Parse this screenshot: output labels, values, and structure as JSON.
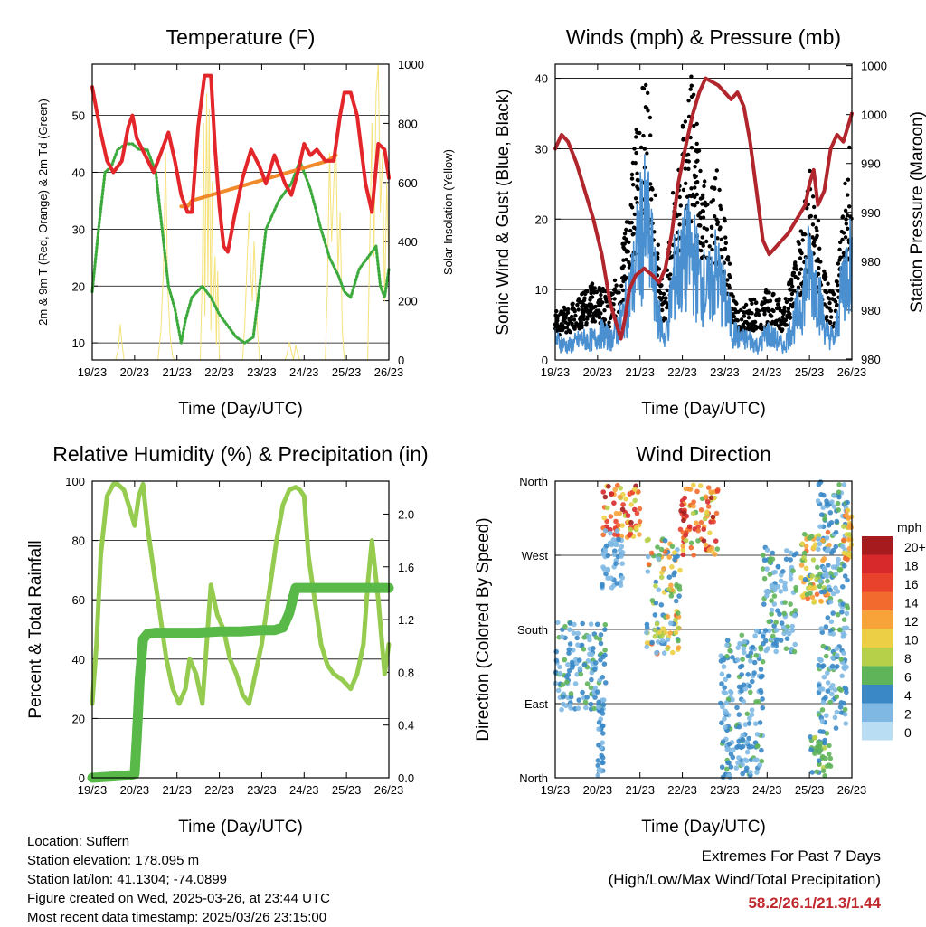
{
  "x_tick_labels": [
    "19/23",
    "20/23",
    "21/23",
    "22/23",
    "23/23",
    "24/23",
    "25/23",
    "26/23"
  ],
  "info": {
    "location": "Location: Suffern",
    "elevation": "Station elevation: 178.095 m",
    "latlon": "Station lat/lon: 41.1304; -74.0899",
    "created": "Figure created on Wed, 2025-03-26, at 23:44 UTC",
    "recent": "Most recent data timestamp: 2025/03/26 23:15:00"
  },
  "extremes": {
    "title": "Extremes For Past 7 Days",
    "subtitle": "(High/Low/Max Wind/Total Precipitation)",
    "values": "58.2/26.1/21.3/1.44",
    "value_color": "#c0282d"
  },
  "chart_data": [
    {
      "type": "line",
      "title": "Temperature (F)",
      "xlabel": "Time (Day/UTC)",
      "ylabel": "2m & 9m T (Red, Orange) & 2m Td (Green)",
      "y2label": "Solar Insolation (Yellow)",
      "x_unit": "days since 19/23",
      "xlim": [
        0,
        7
      ],
      "ylim": [
        7,
        59
      ],
      "y2lim": [
        0,
        1000
      ],
      "yticks": [
        10,
        20,
        30,
        40,
        50
      ],
      "y2ticks": [
        0,
        200,
        400,
        600,
        800,
        1000
      ],
      "grid": true,
      "series": [
        {
          "name": "2m T",
          "color": "#e3262a",
          "x": [
            0,
            0.2,
            0.35,
            0.5,
            0.7,
            0.85,
            0.95,
            1.05,
            1.25,
            1.45,
            1.65,
            1.8,
            1.95,
            2.1,
            2.25,
            2.35,
            2.5,
            2.65,
            2.8,
            2.9,
            3.0,
            3.1,
            3.2,
            3.35,
            3.55,
            3.75,
            3.95,
            4.1,
            4.3,
            4.55,
            4.7,
            4.85,
            5.0,
            5.15,
            5.3,
            5.5,
            5.7,
            5.85,
            5.95,
            6.1,
            6.25,
            6.45,
            6.6,
            6.75,
            6.9,
            7.0
          ],
          "y": [
            55,
            47,
            42,
            40,
            42,
            48,
            50,
            46,
            43,
            40,
            44,
            47,
            42,
            36,
            33,
            33,
            48,
            57,
            57,
            44,
            34,
            27,
            26,
            32,
            39,
            44,
            41,
            38,
            43,
            38,
            36,
            40,
            45,
            43,
            44,
            42,
            42,
            50,
            54,
            54,
            50,
            38,
            33,
            45,
            44,
            39
          ]
        },
        {
          "name": "9m T",
          "color": "#f08a2a",
          "x": [
            2.1,
            2.25,
            2.35,
            5.55,
            5.75
          ],
          "y": [
            34,
            34,
            35,
            42,
            43
          ]
        },
        {
          "name": "2m Td",
          "color": "#3daa3d",
          "x": [
            0,
            0.15,
            0.3,
            0.45,
            0.6,
            0.8,
            0.95,
            1.1,
            1.3,
            1.5,
            1.65,
            1.8,
            1.95,
            2.1,
            2.2,
            2.35,
            2.6,
            2.8,
            3.0,
            3.2,
            3.4,
            3.6,
            3.8,
            3.95,
            4.1,
            4.4,
            4.7,
            4.9,
            5.0,
            5.15,
            5.4,
            5.6,
            5.8,
            5.95,
            6.1,
            6.3,
            6.5,
            6.7,
            6.8,
            6.9,
            7.0
          ],
          "y": [
            19,
            30,
            40,
            41,
            44,
            45,
            45,
            44,
            44,
            40,
            30,
            20,
            16,
            10,
            14,
            18,
            20,
            18,
            15,
            13,
            11,
            10,
            11,
            20,
            30,
            35,
            38,
            42,
            40,
            37,
            30,
            25,
            22,
            19,
            18,
            23,
            25,
            27,
            20,
            18,
            23
          ]
        }
      ],
      "series_y2": [
        {
          "name": "Solar Insolation",
          "color": "#f5e27a",
          "x": [
            0.55,
            0.62,
            0.66,
            0.7,
            0.75,
            0.8,
            0.84,
            0.9,
            0.95,
            1.55,
            1.62,
            1.68,
            1.73,
            1.78,
            1.84,
            1.9,
            1.95,
            2.55,
            2.6,
            2.63,
            2.66,
            2.7,
            2.73,
            2.76,
            2.8,
            2.83,
            2.86,
            2.9,
            2.93,
            2.96,
            3.0,
            3.55,
            3.6,
            3.66,
            3.7,
            3.74,
            3.78,
            3.82,
            3.86,
            3.9,
            3.95,
            4.55,
            4.6,
            4.65,
            4.7,
            4.75,
            4.8,
            4.85,
            4.9,
            5.5,
            5.55,
            5.6,
            5.65,
            5.7,
            5.75,
            5.8,
            5.85,
            5.9,
            5.95,
            6.5,
            6.55,
            6.6,
            6.65,
            6.7,
            6.75,
            6.8,
            6.85,
            6.9,
            6.95,
            7.0
          ],
          "y": [
            0,
            40,
            120,
            60,
            0,
            0,
            0,
            0,
            0,
            0,
            100,
            300,
            700,
            250,
            80,
            10,
            0,
            0,
            300,
            800,
            150,
            900,
            250,
            850,
            100,
            600,
            200,
            350,
            50,
            300,
            0,
            0,
            120,
            350,
            500,
            300,
            200,
            400,
            250,
            100,
            0,
            0,
            20,
            60,
            30,
            0,
            50,
            20,
            0,
            0,
            250,
            700,
            400,
            600,
            750,
            300,
            500,
            100,
            0,
            0,
            400,
            800,
            350,
            900,
            1000,
            500,
            700,
            200,
            600,
            300
          ]
        }
      ]
    },
    {
      "type": "line",
      "title": "Winds (mph) & Pressure (mb)",
      "xlabel": "Time (Day/UTC)",
      "ylabel": "Sonic Wind & Gust (Blue, Black)",
      "y2label": "Station Pressure (Maroon)",
      "x_unit": "days since 19/23",
      "xlim": [
        0,
        7
      ],
      "ylim": [
        0,
        42
      ],
      "yticks": [
        0,
        10,
        20,
        30,
        40
      ],
      "y2_tick_labels": [
        "1000",
        "1000",
        "990",
        "990",
        "980",
        "980",
        "980"
      ],
      "grid": true,
      "series": [
        {
          "name": "Wind",
          "color": "#4a90d0",
          "x": [
            0,
            0.3,
            0.6,
            0.9,
            1.1,
            1.3,
            1.5,
            1.7,
            1.85,
            2.0,
            2.15,
            2.3,
            2.45,
            2.6,
            2.8,
            3.0,
            3.2,
            3.4,
            3.6,
            3.8,
            4.0,
            4.2,
            4.4,
            4.6,
            4.8,
            5.0,
            5.2,
            5.4,
            5.6,
            5.8,
            6.0,
            6.2,
            6.4,
            6.6,
            6.8,
            7.0
          ],
          "y": [
            3,
            2,
            3,
            3,
            4,
            3,
            5,
            8,
            12,
            18,
            20,
            14,
            6,
            3,
            12,
            14,
            16,
            12,
            10,
            13,
            9,
            4,
            3,
            3,
            2,
            4,
            3,
            2,
            5,
            8,
            14,
            10,
            4,
            3,
            12,
            15
          ]
        },
        {
          "name": "Gust",
          "color": "#000000",
          "x": [
            0,
            0.3,
            0.6,
            0.9,
            1.1,
            1.3,
            1.5,
            1.7,
            1.85,
            2.0,
            2.15,
            2.3,
            2.45,
            2.6,
            2.8,
            3.0,
            3.2,
            3.4,
            3.6,
            3.8,
            4.0,
            4.2,
            4.4,
            4.6,
            4.8,
            5.0,
            5.2,
            5.4,
            5.6,
            5.8,
            6.0,
            6.2,
            6.4,
            6.6,
            6.8,
            7.0
          ],
          "y": [
            6,
            7,
            8,
            10,
            9,
            8,
            12,
            18,
            26,
            32,
            36,
            28,
            12,
            8,
            24,
            30,
            36,
            27,
            20,
            24,
            18,
            8,
            6,
            8,
            7,
            9,
            8,
            7,
            12,
            16,
            24,
            18,
            10,
            8,
            20,
            30
          ]
        },
        {
          "name": "Station Pressure",
          "color": "#b0262c",
          "x": [
            0,
            0.15,
            0.3,
            0.5,
            0.7,
            0.9,
            1.1,
            1.3,
            1.45,
            1.55,
            1.65,
            1.75,
            1.9,
            2.1,
            2.3,
            2.45,
            2.6,
            2.75,
            2.9,
            3.1,
            3.25,
            3.4,
            3.55,
            3.7,
            3.85,
            4.0,
            4.15,
            4.3,
            4.45,
            4.6,
            4.75,
            4.9,
            5.05,
            5.2,
            5.35,
            5.5,
            5.6,
            5.7,
            5.8,
            5.9,
            6.0,
            6.1,
            6.2,
            6.35,
            6.5,
            6.65,
            6.8,
            6.9,
            7.0
          ],
          "y": [
            30,
            32,
            31,
            28,
            24,
            20,
            15,
            8,
            5,
            3,
            6,
            10,
            12,
            13,
            12,
            11,
            13,
            18,
            25,
            31,
            35,
            38,
            40,
            39.5,
            39,
            38,
            37,
            38,
            36,
            31,
            24,
            17,
            15,
            16,
            17,
            18,
            19,
            20,
            21,
            22,
            25,
            27,
            22,
            24,
            30,
            32,
            31,
            33,
            35
          ]
        }
      ]
    },
    {
      "type": "line",
      "title": "Relative Humidity (%) & Precipitation (in)",
      "xlabel": "Time (Day/UTC)",
      "ylabel": "Percent & Total Rainfall",
      "x_unit": "days since 19/23",
      "xlim": [
        0,
        7
      ],
      "ylim": [
        0,
        100
      ],
      "y2lim": [
        0,
        2.25
      ],
      "yticks": [
        0,
        20,
        40,
        60,
        80,
        100
      ],
      "y2ticks": [
        0.0,
        0.4,
        0.8,
        1.2,
        1.6,
        2.0
      ],
      "grid": true,
      "series": [
        {
          "name": "Relative Humidity",
          "color": "#95cc50",
          "x": [
            0,
            0.1,
            0.2,
            0.35,
            0.5,
            0.6,
            0.75,
            0.9,
            1.0,
            1.1,
            1.2,
            1.3,
            1.45,
            1.6,
            1.75,
            1.9,
            2.05,
            2.2,
            2.3,
            2.45,
            2.6,
            2.7,
            2.8,
            2.95,
            3.1,
            3.25,
            3.4,
            3.55,
            3.7,
            3.85,
            4.0,
            4.15,
            4.35,
            4.5,
            4.65,
            4.8,
            4.9,
            5.0,
            5.1,
            5.25,
            5.4,
            5.55,
            5.7,
            5.9,
            6.1,
            6.25,
            6.4,
            6.5,
            6.6,
            6.75,
            6.9,
            7.0
          ],
          "y": [
            25,
            45,
            75,
            95,
            99,
            99,
            97,
            90,
            85,
            95,
            99,
            85,
            70,
            55,
            40,
            30,
            25,
            30,
            40,
            35,
            25,
            45,
            65,
            55,
            50,
            40,
            35,
            28,
            25,
            35,
            45,
            60,
            80,
            92,
            97,
            98,
            97,
            95,
            75,
            60,
            45,
            38,
            35,
            33,
            30,
            35,
            45,
            65,
            80,
            60,
            35,
            45
          ]
        },
        {
          "name": "Total Precipitation",
          "color": "#58b848",
          "axis": "y2",
          "x": [
            0,
            0.5,
            0.9,
            1.0,
            1.05,
            1.12,
            1.2,
            1.3,
            1.5,
            2.0,
            2.5,
            3.0,
            3.5,
            4.0,
            4.3,
            4.5,
            4.65,
            4.75,
            4.8,
            4.9,
            5.2,
            5.6,
            6.0,
            6.5,
            7.0
          ],
          "y": [
            0,
            0.01,
            0.02,
            0.03,
            0.3,
            0.75,
            1.05,
            1.09,
            1.1,
            1.1,
            1.1,
            1.11,
            1.11,
            1.12,
            1.12,
            1.14,
            1.25,
            1.38,
            1.44,
            1.44,
            1.44,
            1.44,
            1.44,
            1.44,
            1.44
          ]
        }
      ]
    },
    {
      "type": "scatter",
      "title": "Wind Direction",
      "xlabel": "Time (Day/UTC)",
      "ylabel": "Direction (Colored By Speed)",
      "x_unit": "days since 19/23",
      "xlim": [
        0,
        7
      ],
      "y_unit": "degrees",
      "ylim": [
        0,
        360
      ],
      "y_tick_labels": [
        "North",
        "East",
        "South",
        "West",
        "North"
      ],
      "y_tick_values": [
        0,
        90,
        180,
        270,
        360
      ],
      "grid": true,
      "colorbar": {
        "label": "mph",
        "labels": [
          "20+",
          "18",
          "16",
          "14",
          "12",
          "10",
          "8",
          "6",
          "4",
          "2",
          "0"
        ],
        "colors": [
          "#a51b1e",
          "#d7282b",
          "#e8412c",
          "#f26a2e",
          "#f8a33a",
          "#eccf45",
          "#b7d04a",
          "#5fb45a",
          "#3a88c6",
          "#7fb9e3",
          "#b9def3"
        ]
      },
      "clusters": [
        {
          "x": [
            0,
            1.2
          ],
          "y": [
            80,
            190
          ],
          "speed": [
            1,
            6
          ]
        },
        {
          "x": [
            1.0,
            1.15
          ],
          "y": [
            0,
            110
          ],
          "speed": [
            2,
            5
          ]
        },
        {
          "x": [
            1.1,
            2.0
          ],
          "y": [
            290,
            355
          ],
          "speed": [
            8,
            20
          ]
        },
        {
          "x": [
            1.1,
            1.6
          ],
          "y": [
            230,
            300
          ],
          "speed": [
            1,
            4
          ]
        },
        {
          "x": [
            2.15,
            2.95
          ],
          "y": [
            150,
            290
          ],
          "speed": [
            1,
            14
          ]
        },
        {
          "x": [
            2.95,
            3.85
          ],
          "y": [
            270,
            360
          ],
          "speed": [
            6,
            20
          ]
        },
        {
          "x": [
            3.9,
            4.2
          ],
          "y": [
            0,
            170
          ],
          "speed": [
            1,
            6
          ]
        },
        {
          "x": [
            4.25,
            4.9
          ],
          "y": [
            0,
            180
          ],
          "speed": [
            1,
            6
          ]
        },
        {
          "x": [
            4.9,
            5.7
          ],
          "y": [
            150,
            280
          ],
          "speed": [
            1,
            6
          ]
        },
        {
          "x": [
            5.8,
            6.5
          ],
          "y": [
            210,
            300
          ],
          "speed": [
            4,
            14
          ]
        },
        {
          "x": [
            6.0,
            6.5
          ],
          "y": [
            0,
            60
          ],
          "speed": [
            4,
            8
          ]
        },
        {
          "x": [
            6.2,
            6.9
          ],
          "y": [
            60,
            360
          ],
          "speed": [
            1,
            6
          ]
        },
        {
          "x": [
            6.8,
            7.0
          ],
          "y": [
            260,
            330
          ],
          "speed": [
            8,
            14
          ]
        }
      ]
    }
  ]
}
